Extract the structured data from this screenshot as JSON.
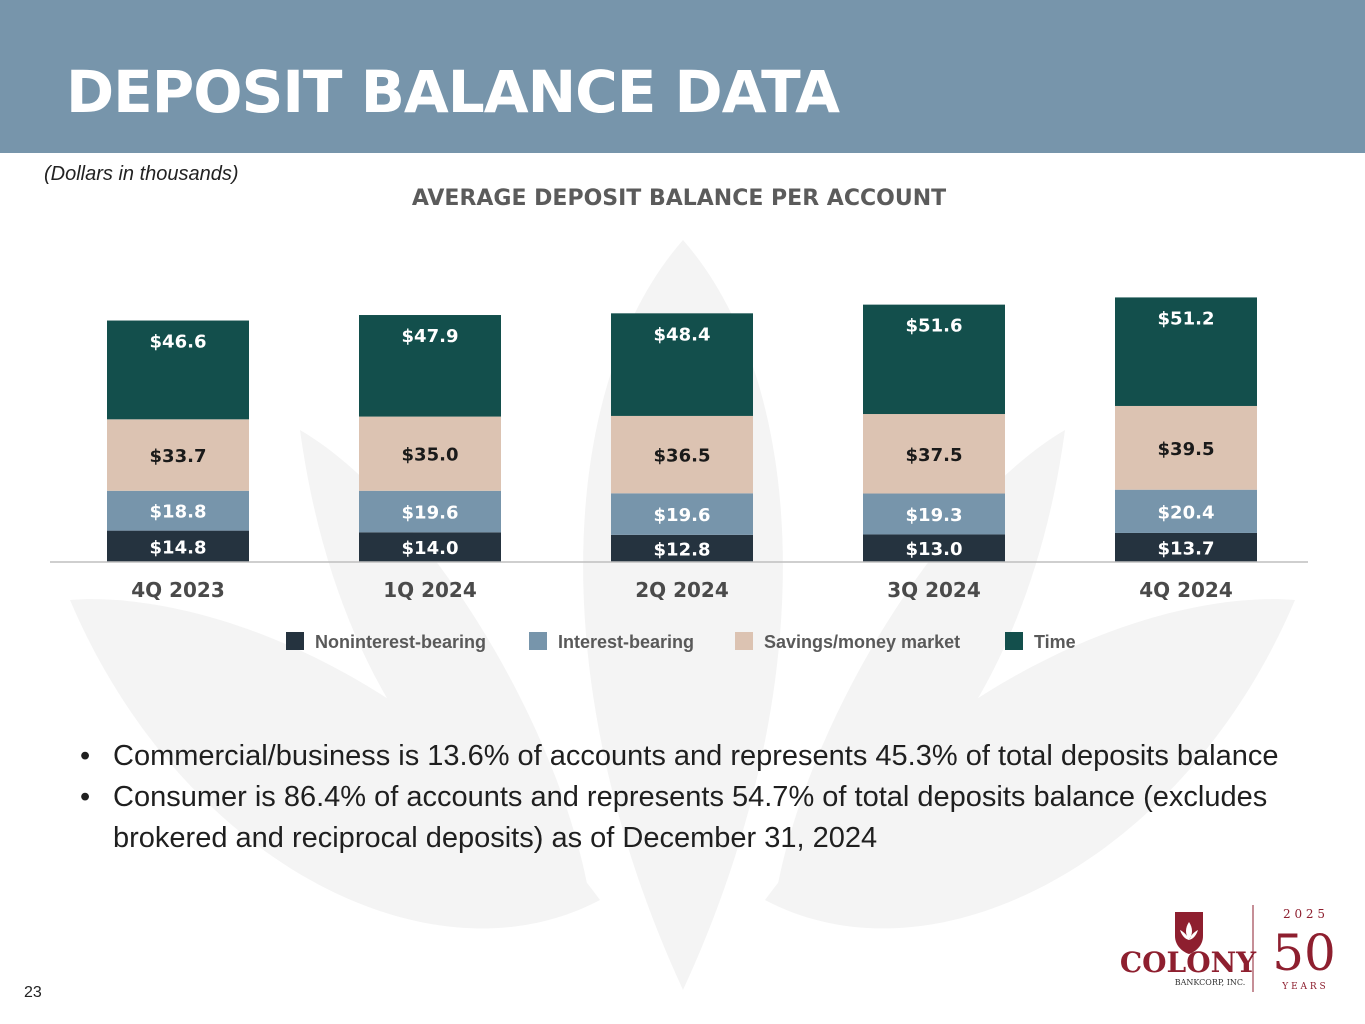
{
  "header": {
    "title": "DEPOSIT BALANCE DATA"
  },
  "note": "(Dollars in thousands)",
  "chart_data": {
    "type": "bar",
    "stacked": true,
    "title": "AVERAGE DEPOSIT BALANCE PER ACCOUNT",
    "categories": [
      "4Q 2023",
      "1Q 2024",
      "2Q 2024",
      "3Q 2024",
      "4Q 2024"
    ],
    "series": [
      {
        "name": "Noninterest-bearing",
        "color": "#25333f",
        "values": [
          14.8,
          14.0,
          12.8,
          13.0,
          13.7
        ],
        "labels": [
          "$14.8",
          "$14.0",
          "$12.8",
          "$13.0",
          "$13.7"
        ]
      },
      {
        "name": "Interest-bearing",
        "color": "#7795ab",
        "values": [
          18.8,
          19.6,
          19.6,
          19.3,
          20.4
        ],
        "labels": [
          "$18.8",
          "$19.6",
          "$19.6",
          "$19.3",
          "$20.4"
        ]
      },
      {
        "name": "Savings/money market",
        "color": "#dcc3b2",
        "values": [
          33.7,
          35.0,
          36.5,
          37.5,
          39.5
        ],
        "labels": [
          "$33.7",
          "$35.0",
          "$36.5",
          "$37.5",
          "$39.5"
        ]
      },
      {
        "name": "Time",
        "color": "#134f4c",
        "values": [
          46.6,
          47.9,
          48.4,
          51.6,
          51.2
        ],
        "labels": [
          "$46.6",
          "$47.9",
          "$48.4",
          "$51.6",
          "$51.2"
        ]
      }
    ],
    "legend_position": "bottom"
  },
  "bullets": [
    "Commercial/business is 13.6% of accounts and represents 45.3% of total deposits balance",
    "Consumer is 86.4% of accounts and represents 54.7% of total deposits balance (excludes brokered and reciprocal deposits) as of December 31, 2024"
  ],
  "bullet_symbol": "•",
  "page_number": "23",
  "logo": {
    "name": "COLONY",
    "subtitle": "BANKCORP, INC.",
    "anniversary_year": "2 0 2 5",
    "anniversary_number": "50",
    "anniversary_word": "Y E A R S"
  }
}
